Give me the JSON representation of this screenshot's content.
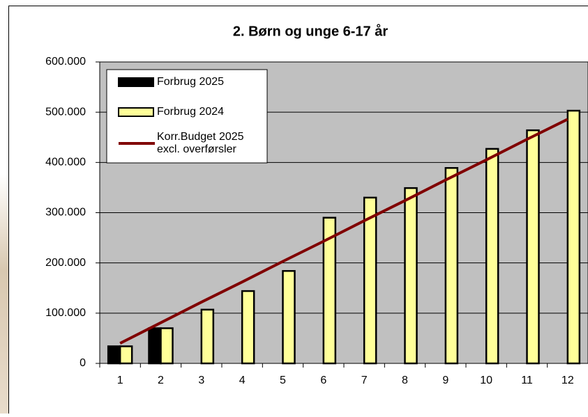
{
  "chart_data": {
    "type": "bar_line",
    "title": "2. Børn og unge 6-17 år",
    "categories": [
      "1",
      "2",
      "3",
      "4",
      "5",
      "6",
      "7",
      "8",
      "9",
      "10",
      "11",
      "12"
    ],
    "series": [
      {
        "name": "Forbrug 2025",
        "type": "bar",
        "color": "#000000",
        "values": [
          34000,
          70000,
          null,
          null,
          null,
          null,
          null,
          null,
          null,
          null,
          null,
          null
        ]
      },
      {
        "name": "Forbrug 2024",
        "type": "bar",
        "color": "#ffff99",
        "values": [
          34000,
          70000,
          107000,
          144000,
          184000,
          290000,
          330000,
          349000,
          389000,
          427000,
          464000,
          503000
        ]
      },
      {
        "name": "Korr.Budget 2025\nexcl. overførsler",
        "type": "line",
        "color": "#800000",
        "values": [
          40000,
          81000,
          122000,
          162000,
          203000,
          243000,
          284000,
          324000,
          365000,
          405000,
          446000,
          486000
        ]
      }
    ],
    "ylim": [
      0,
      600000
    ],
    "yticks": [
      0,
      {
        "value": 100000,
        "label": "100.000"
      },
      {
        "value": 200000,
        "label": "200.000"
      },
      {
        "value": 300000,
        "label": "300.000"
      },
      {
        "value": 400000,
        "label": "400.000"
      },
      {
        "value": 500000,
        "label": "500.000"
      },
      {
        "value": 600000,
        "label": "600.000"
      }
    ],
    "grid": true,
    "legend": "upper left",
    "plot_background": "#c0c0c0"
  }
}
